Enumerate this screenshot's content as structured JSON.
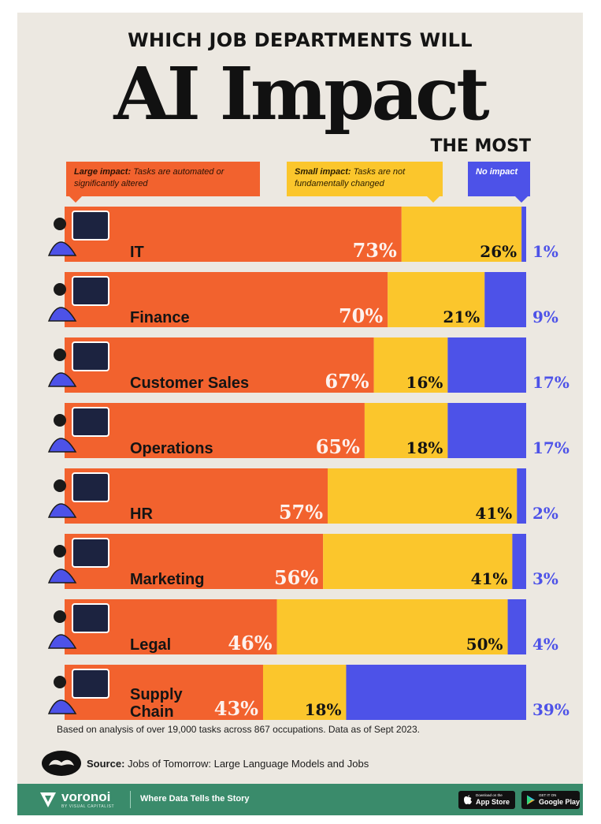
{
  "header": {
    "line1": "WHICH JOB DEPARTMENTS WILL",
    "line2": "AI Impact",
    "line3": "THE MOST"
  },
  "legend": {
    "large": {
      "title": "Large impact:",
      "text": " Tasks are automated or significantly altered",
      "color": "#f2622e"
    },
    "small": {
      "title": "Small impact:",
      "text": " Tasks are not fundamentally changed",
      "color": "#fbc62c"
    },
    "none": {
      "title": "No impact",
      "color": "#4d52e8"
    }
  },
  "chart_data": {
    "type": "bar",
    "orientation": "horizontal",
    "stacked": true,
    "categories": [
      "IT",
      "Finance",
      "Customer Sales",
      "Operations",
      "HR",
      "Marketing",
      "Legal",
      "Supply Chain"
    ],
    "series": [
      {
        "name": "Large impact",
        "color": "#f2622e",
        "values": [
          73,
          70,
          67,
          65,
          57,
          56,
          46,
          43
        ]
      },
      {
        "name": "Small impact",
        "color": "#fbc62c",
        "values": [
          26,
          21,
          16,
          18,
          41,
          41,
          50,
          18
        ]
      },
      {
        "name": "No impact",
        "color": "#4d52e8",
        "values": [
          1,
          9,
          17,
          17,
          2,
          3,
          4,
          39
        ]
      }
    ],
    "unit": "%",
    "xlim": [
      0,
      100
    ],
    "grid": false
  },
  "footnote": "Based on analysis of over 19,000 tasks across 867 occupations. Data as of Sept 2023.",
  "source": {
    "label": "Source:",
    "text": " Jobs of Tomorrow: Large Language Models and Jobs"
  },
  "footer": {
    "brand": "voronoi",
    "brand_sub": "BY VISUAL CAPITALIST",
    "tagline": "Where Data Tells the Story",
    "app_store_small": "Download on the",
    "app_store": "App Store",
    "google_play_small": "GET IT ON",
    "google_play": "Google Play",
    "color": "#3a8b6b"
  }
}
